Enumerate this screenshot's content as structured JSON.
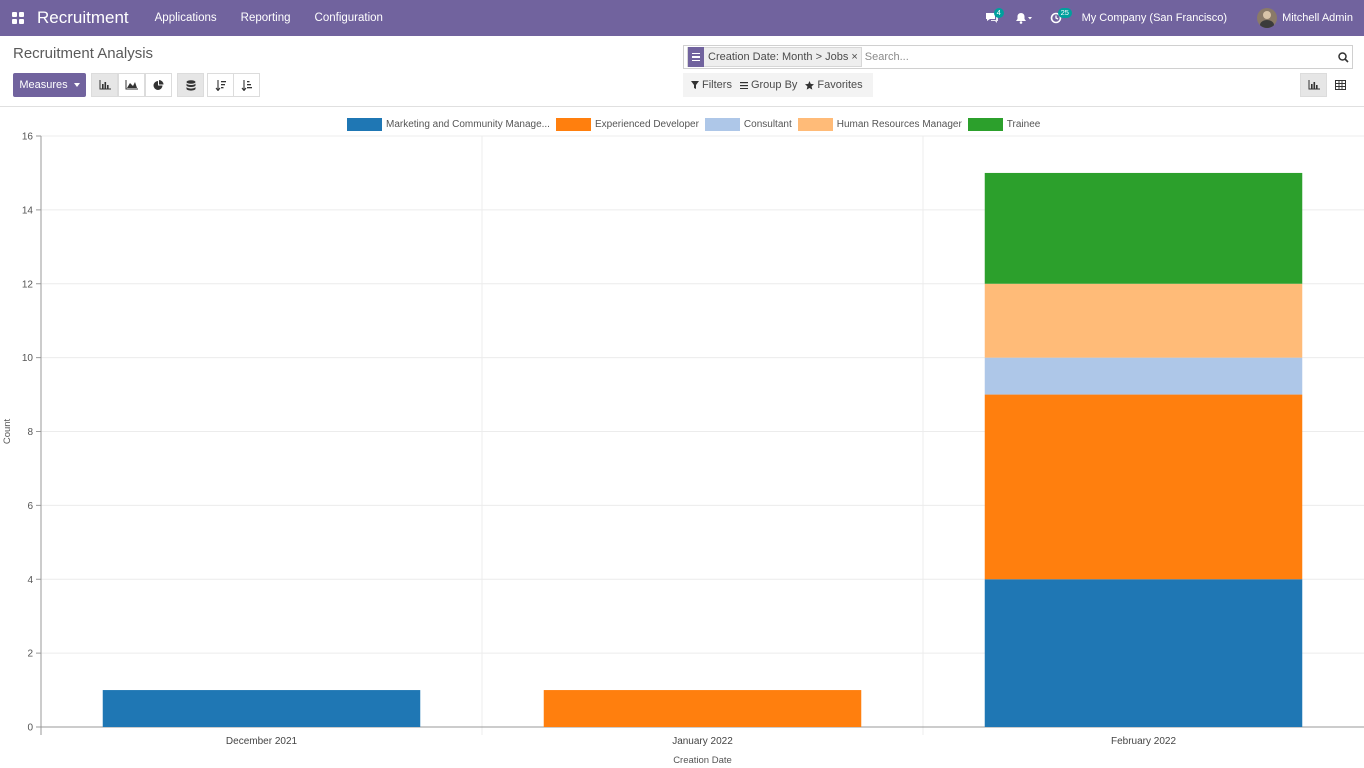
{
  "navbar": {
    "brand": "Recruitment",
    "menu": [
      "Applications",
      "Reporting",
      "Configuration"
    ],
    "messages_badge": "4",
    "activities_badge": "25",
    "company": "My Company (San Francisco)",
    "user": "Mitchell Admin"
  },
  "control_panel": {
    "title": "Recruitment Analysis",
    "measures_label": "Measures",
    "facet": "Creation Date: Month > Jobs",
    "facet_remove": "×",
    "search_placeholder": "Search...",
    "filters_label": "Filters",
    "groupby_label": "Group By",
    "favorites_label": "Favorites"
  },
  "chart_data": {
    "type": "bar",
    "stacked": true,
    "xlabel": "Creation Date",
    "ylabel": "Count",
    "ylim": [
      0,
      16
    ],
    "yticks": [
      0,
      2,
      4,
      6,
      8,
      10,
      12,
      14,
      16
    ],
    "grid": true,
    "legend_position": "top",
    "categories": [
      "December 2021",
      "January 2022",
      "February 2022"
    ],
    "series": [
      {
        "name": "Marketing and Community Manage...",
        "color": "#1f77b4",
        "values": [
          1,
          0,
          4
        ]
      },
      {
        "name": "Experienced Developer",
        "color": "#ff7f0e",
        "values": [
          0,
          1,
          5
        ]
      },
      {
        "name": "Consultant",
        "color": "#aec7e8",
        "values": [
          0,
          0,
          1
        ]
      },
      {
        "name": "Human Resources Manager",
        "color": "#ffbb78",
        "values": [
          0,
          0,
          2
        ]
      },
      {
        "name": "Trainee",
        "color": "#2ca02c",
        "values": [
          0,
          0,
          3
        ]
      }
    ]
  }
}
